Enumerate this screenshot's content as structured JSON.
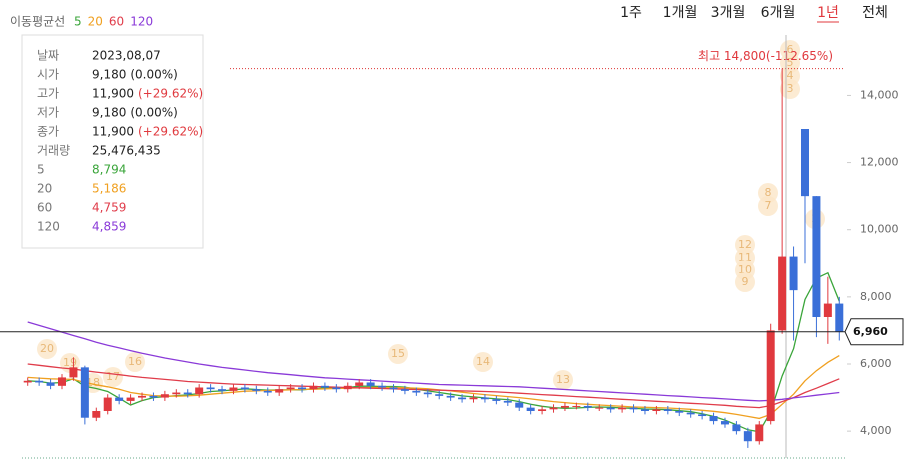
{
  "chart_data": {
    "type": "candlestick",
    "legend_title": "이동평균선",
    "periods": [
      "1주",
      "1개월",
      "3개월",
      "6개월",
      "1년",
      "전체"
    ],
    "selected_period": "1년",
    "ylim": [
      3200,
      15800
    ],
    "yticks": [
      {
        "value": 4000,
        "label": "4,000"
      },
      {
        "value": 6000,
        "label": "6,000"
      },
      {
        "value": 8000,
        "label": "8,000"
      },
      {
        "value": 10000,
        "label": "10,000"
      },
      {
        "value": 12000,
        "label": "12,000"
      },
      {
        "value": 14000,
        "label": "14,000"
      }
    ],
    "up_color": "#e0393e",
    "down_color": "#3a6fd8",
    "open": [
      5450,
      5500,
      5450,
      5350,
      5600,
      5900,
      4400,
      4600,
      5000,
      4900,
      5000,
      5050,
      5000,
      5100,
      5150,
      5100,
      5300,
      5250,
      5200,
      5300,
      5250,
      5200,
      5150,
      5250,
      5300,
      5250,
      5350,
      5300,
      5250,
      5350,
      5450,
      5350,
      5300,
      5250,
      5200,
      5150,
      5100,
      5050,
      5000,
      4950,
      5000,
      4950,
      4900,
      4850,
      4700,
      4600,
      4650,
      4700,
      4750,
      4750,
      4700,
      4700,
      4650,
      4700,
      4650,
      4600,
      4650,
      4600,
      4550,
      4500,
      4450,
      4300,
      4200,
      4000,
      3700,
      4300,
      7000,
      9200,
      13000,
      11000,
      7400,
      7800
    ],
    "high": [
      5600,
      5600,
      5550,
      5700,
      6200,
      5950,
      4700,
      5100,
      5100,
      5100,
      5150,
      5150,
      5200,
      5250,
      5250,
      5400,
      5400,
      5350,
      5400,
      5400,
      5350,
      5300,
      5350,
      5400,
      5400,
      5450,
      5450,
      5400,
      5450,
      5550,
      5550,
      5450,
      5400,
      5350,
      5300,
      5250,
      5200,
      5150,
      5100,
      5100,
      5100,
      5050,
      5000,
      4950,
      4800,
      4750,
      4800,
      4850,
      4850,
      4850,
      4800,
      4800,
      4800,
      4800,
      4750,
      4750,
      4750,
      4700,
      4650,
      4600,
      4550,
      4400,
      4300,
      4100,
      4300,
      7200,
      14800,
      9500,
      13000,
      11000,
      8600,
      8000
    ],
    "low": [
      5350,
      5350,
      5250,
      5250,
      5500,
      4200,
      4300,
      4500,
      4800,
      4800,
      4900,
      4900,
      4900,
      5000,
      5000,
      5000,
      5150,
      5100,
      5100,
      5150,
      5100,
      5050,
      5050,
      5150,
      5150,
      5150,
      5200,
      5150,
      5150,
      5250,
      5250,
      5200,
      5150,
      5100,
      5050,
      5000,
      4950,
      4900,
      4850,
      4850,
      4850,
      4800,
      4750,
      4600,
      4500,
      4500,
      4550,
      4600,
      4650,
      4600,
      4600,
      4550,
      4550,
      4550,
      4500,
      4500,
      4500,
      4450,
      4400,
      4350,
      4200,
      4100,
      3900,
      3500,
      3600,
      4200,
      6900,
      6700,
      9000,
      6800,
      6600,
      6700
    ],
    "close": [
      5500,
      5450,
      5350,
      5600,
      5900,
      4400,
      4600,
      5000,
      4900,
      5000,
      5050,
      5000,
      5100,
      5150,
      5100,
      5300,
      5250,
      5200,
      5300,
      5250,
      5200,
      5150,
      5250,
      5300,
      5250,
      5350,
      5300,
      5250,
      5350,
      5450,
      5350,
      5300,
      5250,
      5200,
      5150,
      5100,
      5050,
      5000,
      4950,
      5000,
      4950,
      4900,
      4850,
      4700,
      4600,
      4650,
      4700,
      4750,
      4750,
      4700,
      4700,
      4650,
      4700,
      4650,
      4600,
      4650,
      4600,
      4550,
      4500,
      4450,
      4300,
      4200,
      4000,
      3700,
      4200,
      7000,
      9200,
      8200,
      11000,
      7400,
      7800,
      6960
    ],
    "series": [
      {
        "name": "5",
        "color": "#3aa53a",
        "values": [
          5500,
          5480,
          5430,
          5450,
          5560,
          5340,
          5270,
          5180,
          4980,
          4780,
          4910,
          5000,
          5030,
          5060,
          5080,
          5120,
          5180,
          5200,
          5230,
          5260,
          5240,
          5220,
          5230,
          5230,
          5230,
          5260,
          5290,
          5290,
          5300,
          5340,
          5340,
          5330,
          5330,
          5310,
          5250,
          5200,
          5150,
          5100,
          5050,
          5020,
          4990,
          4960,
          4940,
          4880,
          4800,
          4740,
          4700,
          4680,
          4690,
          4710,
          4720,
          4710,
          4690,
          4680,
          4660,
          4650,
          4640,
          4610,
          4580,
          4520,
          4440,
          4330,
          4190,
          4040,
          3980,
          4580,
          5640,
          6460,
          7920,
          8560,
          8720,
          7870
        ]
      },
      {
        "name": "20",
        "color": "#f0a020",
        "values": [
          5600,
          5580,
          5560,
          5550,
          5540,
          5450,
          5380,
          5320,
          5250,
          5150,
          5100,
          5060,
          5050,
          5040,
          5050,
          5070,
          5100,
          5130,
          5160,
          5190,
          5200,
          5210,
          5220,
          5230,
          5240,
          5250,
          5260,
          5270,
          5280,
          5290,
          5300,
          5300,
          5300,
          5290,
          5280,
          5260,
          5230,
          5200,
          5160,
          5120,
          5090,
          5060,
          5030,
          5000,
          4960,
          4920,
          4880,
          4850,
          4820,
          4800,
          4780,
          4760,
          4740,
          4720,
          4710,
          4700,
          4690,
          4670,
          4650,
          4620,
          4590,
          4550,
          4500,
          4440,
          4380,
          4500,
          4800,
          5100,
          5500,
          5800,
          6050,
          6250
        ]
      },
      {
        "name": "60",
        "color": "#e03c4a",
        "values": [
          6000,
          5960,
          5920,
          5880,
          5850,
          5800,
          5760,
          5720,
          5680,
          5640,
          5600,
          5570,
          5540,
          5510,
          5480,
          5460,
          5440,
          5420,
          5400,
          5390,
          5380,
          5370,
          5360,
          5350,
          5340,
          5330,
          5320,
          5310,
          5300,
          5290,
          5280,
          5270,
          5260,
          5250,
          5240,
          5230,
          5220,
          5210,
          5200,
          5190,
          5180,
          5170,
          5150,
          5130,
          5110,
          5090,
          5070,
          5050,
          5030,
          5010,
          4990,
          4970,
          4950,
          4930,
          4910,
          4890,
          4870,
          4850,
          4830,
          4810,
          4790,
          4770,
          4740,
          4720,
          4700,
          4760,
          4880,
          5000,
          5150,
          5280,
          5420,
          5560
        ]
      },
      {
        "name": "120",
        "color": "#8a3ad8",
        "values": [
          7250,
          7150,
          7050,
          6950,
          6850,
          6750,
          6650,
          6560,
          6480,
          6400,
          6320,
          6250,
          6180,
          6120,
          6060,
          6000,
          5950,
          5900,
          5860,
          5820,
          5780,
          5740,
          5710,
          5680,
          5650,
          5620,
          5590,
          5570,
          5550,
          5530,
          5510,
          5490,
          5470,
          5450,
          5430,
          5410,
          5390,
          5380,
          5370,
          5360,
          5350,
          5340,
          5330,
          5320,
          5300,
          5280,
          5260,
          5240,
          5220,
          5200,
          5180,
          5160,
          5140,
          5120,
          5100,
          5080,
          5060,
          5040,
          5020,
          5000,
          4980,
          4960,
          4940,
          4920,
          4900,
          4920,
          4950,
          4990,
          5030,
          5070,
          5110,
          5150
        ]
      }
    ],
    "max_label": "최고 14,800(-112.65%)",
    "max_value": 14800,
    "current_price": {
      "value": 6960,
      "label": "6,960"
    },
    "markers": [
      "20",
      "19",
      "18",
      "17",
      "16",
      "15",
      "14",
      "13",
      "12",
      "11",
      "10",
      "9",
      "8",
      "7",
      "2",
      "6",
      "5",
      "4",
      "3"
    ],
    "tooltip": {
      "rows": [
        {
          "label": "날짜",
          "value": "2023,08,07"
        },
        {
          "label": "시가",
          "value": "9,180",
          "change": "(0.00%)"
        },
        {
          "label": "고가",
          "value": "11,900",
          "change": "(+29.62%)"
        },
        {
          "label": "저가",
          "value": "9,180",
          "change": "(0.00%)"
        },
        {
          "label": "종가",
          "value": "11,900",
          "change": "(+29.62%)"
        },
        {
          "label": "거래량",
          "value": "25,476,435"
        },
        {
          "label": "5",
          "value": "8,794"
        },
        {
          "label": "20",
          "value": "5,186"
        },
        {
          "label": "60",
          "value": "4,759"
        },
        {
          "label": "120",
          "value": "4,859"
        }
      ]
    }
  }
}
